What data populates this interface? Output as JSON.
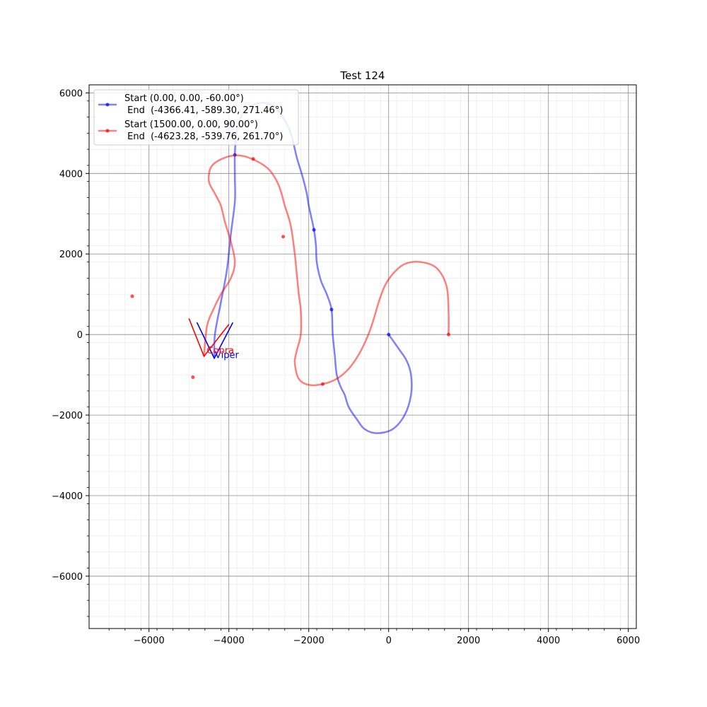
{
  "chart_data": {
    "type": "line",
    "title": "Test 124",
    "xlabel": "",
    "ylabel": "",
    "xlim": [
      -7500,
      6200
    ],
    "ylim": [
      -7300,
      6200
    ],
    "xticks": [
      -6000,
      -4000,
      -2000,
      0,
      2000,
      4000,
      6000
    ],
    "yticks": [
      -6000,
      -4000,
      -2000,
      0,
      2000,
      4000,
      6000
    ],
    "xtick_labels": [
      "−6000",
      "−4000",
      "−2000",
      "0",
      "2000",
      "4000",
      "6000"
    ],
    "ytick_labels": [
      "−6000",
      "−4000",
      "−2000",
      "0",
      "2000",
      "4000",
      "6000"
    ],
    "grid": true,
    "minor_grid": true,
    "legend_position": "top-left",
    "series": [
      {
        "name": "Start (0.00, 0.00, -60.00°)\n End  (-4366.41, -589.30, 271.46°)",
        "legend_line1": "Start (0.00, 0.00, -60.00°)",
        "legend_line2": " End  (-4366.41, -589.30, 271.46°)",
        "color": "#0000ff",
        "points": [
          [
            0,
            0
          ],
          [
            250,
            -350
          ],
          [
            450,
            -650
          ],
          [
            560,
            -1000
          ],
          [
            560,
            -1500
          ],
          [
            400,
            -2000
          ],
          [
            100,
            -2350
          ],
          [
            -300,
            -2450
          ],
          [
            -600,
            -2350
          ],
          [
            -800,
            -2100
          ],
          [
            -1000,
            -1800
          ],
          [
            -1100,
            -1500
          ],
          [
            -1200,
            -1300
          ],
          [
            -1300,
            -1000
          ],
          [
            -1350,
            -500
          ],
          [
            -1400,
            0
          ],
          [
            -1430,
            620
          ],
          [
            -1550,
            1000
          ],
          [
            -1700,
            1350
          ],
          [
            -1800,
            1800
          ],
          [
            -1820,
            2200
          ],
          [
            -1870,
            2600
          ],
          [
            -2000,
            3200
          ],
          [
            -2050,
            3500
          ],
          [
            -2150,
            3900
          ],
          [
            -2300,
            4400
          ],
          [
            -2450,
            5000
          ],
          [
            -2650,
            5400
          ],
          [
            -2850,
            5650
          ],
          [
            -3100,
            5750
          ],
          [
            -3400,
            5700
          ],
          [
            -3650,
            5500
          ],
          [
            -3800,
            5050
          ],
          [
            -3850,
            4500
          ],
          [
            -3850,
            3900
          ],
          [
            -3850,
            3300
          ],
          [
            -3950,
            2500
          ],
          [
            -4050,
            1600
          ],
          [
            -4200,
            800
          ],
          [
            -4350,
            0
          ],
          [
            -4366,
            -589
          ]
        ],
        "markers": [
          [
            0,
            0
          ],
          [
            -1430,
            620
          ],
          [
            -1870,
            2600
          ],
          [
            -3850,
            4460
          ]
        ]
      },
      {
        "name": "Start (1500.00, 0.00, 90.00°)\n End  (-4623.28, -539.76, 261.70°)",
        "legend_line1": "Start (1500.00, 0.00, 90.00°)",
        "legend_line2": " End  (-4623.28, -539.76, 261.70°)",
        "color": "#ff0000",
        "points": [
          [
            1500,
            0
          ],
          [
            1500,
            550
          ],
          [
            1450,
            1200
          ],
          [
            1200,
            1650
          ],
          [
            800,
            1800
          ],
          [
            400,
            1750
          ],
          [
            100,
            1500
          ],
          [
            -100,
            1200
          ],
          [
            -250,
            800
          ],
          [
            -400,
            300
          ],
          [
            -550,
            -100
          ],
          [
            -750,
            -500
          ],
          [
            -1000,
            -850
          ],
          [
            -1300,
            -1100
          ],
          [
            -1650,
            -1230
          ],
          [
            -2000,
            -1250
          ],
          [
            -2250,
            -1100
          ],
          [
            -2350,
            -700
          ],
          [
            -2300,
            -400
          ],
          [
            -2200,
            0
          ],
          [
            -2200,
            600
          ],
          [
            -2250,
            1000
          ],
          [
            -2300,
            1500
          ],
          [
            -2350,
            2000
          ],
          [
            -2450,
            2700
          ],
          [
            -2600,
            3200
          ],
          [
            -2750,
            3700
          ],
          [
            -3000,
            4100
          ],
          [
            -3400,
            4350
          ],
          [
            -3800,
            4450
          ],
          [
            -4200,
            4350
          ],
          [
            -4450,
            4150
          ],
          [
            -4500,
            3800
          ],
          [
            -4350,
            3500
          ],
          [
            -4200,
            3200
          ],
          [
            -4100,
            2800
          ],
          [
            -3950,
            2300
          ],
          [
            -3850,
            1800
          ],
          [
            -3950,
            1400
          ],
          [
            -4200,
            1000
          ],
          [
            -4400,
            600
          ],
          [
            -4550,
            200
          ],
          [
            -4623,
            -540
          ]
        ],
        "markers": [
          [
            1500,
            0
          ],
          [
            -1650,
            -1230
          ],
          [
            -2640,
            2430
          ],
          [
            -3390,
            4360
          ],
          [
            -4900,
            -1060
          ],
          [
            -6420,
            950
          ]
        ]
      }
    ],
    "robots": [
      {
        "label": "Viper",
        "color": "#0000ff",
        "apex": [
          -4366,
          -589
        ],
        "left": [
          -4800,
          300
        ],
        "right": [
          -3900,
          300
        ]
      },
      {
        "label": "Cobra",
        "color": "#ff0000",
        "apex": [
          -4623,
          -540
        ],
        "left": [
          -5000,
          400
        ],
        "right": [
          -4000,
          250
        ]
      }
    ]
  }
}
